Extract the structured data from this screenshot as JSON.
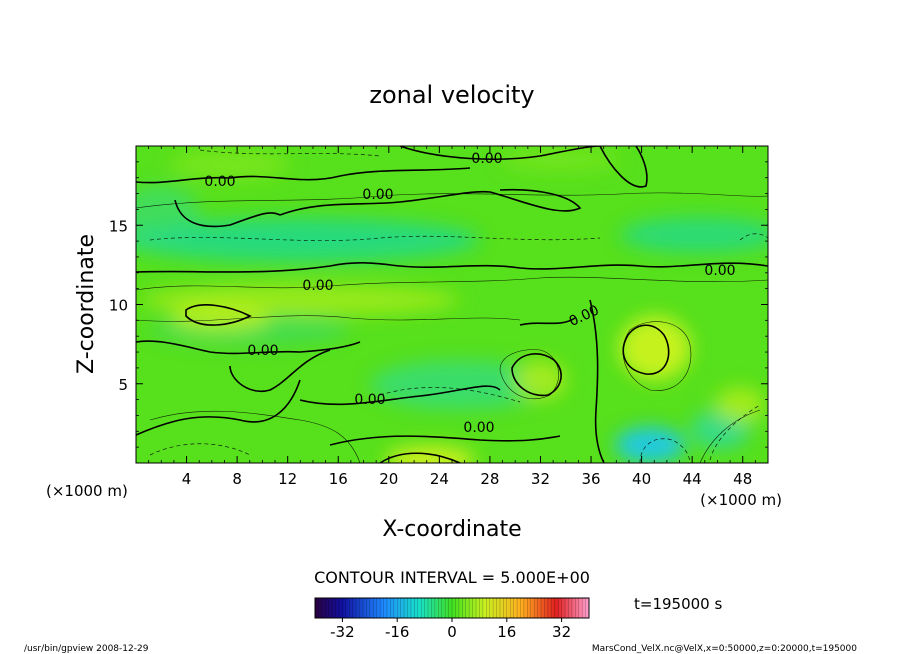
{
  "chart_data": {
    "type": "heatmap",
    "title": "zonal velocity",
    "xlabel": "X-coordinate",
    "ylabel": "Z-coordinate",
    "x_unit_left": "(×1000 m)",
    "x_unit_right": "(×1000 m)",
    "xlim": [
      0,
      50
    ],
    "ylim": [
      0,
      20
    ],
    "x_ticks": [
      4,
      8,
      12,
      16,
      20,
      24,
      28,
      32,
      36,
      40,
      44,
      48
    ],
    "y_ticks": [
      5,
      10,
      15
    ],
    "contour_labels": [
      {
        "text": "0.00",
        "x": 5.5,
        "y": 17.8
      },
      {
        "text": "0.00",
        "x": 27.6,
        "y": 19.3
      },
      {
        "text": "0.00",
        "x": 19.1,
        "y": 16.9
      },
      {
        "text": "0.00",
        "x": 46.2,
        "y": 12.3
      },
      {
        "text": "0.00",
        "x": 14.4,
        "y": 11.2
      },
      {
        "text": "0.00",
        "x": 35.6,
        "y": 9.5
      },
      {
        "text": "0.00",
        "x": 9.8,
        "y": 7.1
      },
      {
        "text": "0.00",
        "x": 18.6,
        "y": 4.0
      },
      {
        "text": "0.00",
        "x": 27.1,
        "y": 2.3
      }
    ],
    "contour_interval_label": "CONTOUR INTERVAL = 5.000E+00",
    "time_label": "t=195000 s",
    "colorbar": {
      "range": [
        -40,
        40
      ],
      "ticks": [
        "-32",
        "-16",
        "0",
        "16",
        "32"
      ],
      "tick_values": [
        -32,
        -16,
        0,
        16,
        32
      ]
    },
    "footer_left": "/usr/bin/gpview  2008-12-29",
    "footer_right": "MarsCond_VelX.nc@VelX,x=0:50000,z=0:20000,t=195000",
    "colors": {
      "field_base": "#57e01c",
      "negative": "#1ed9a0",
      "positive": "#b9ef1a"
    }
  }
}
